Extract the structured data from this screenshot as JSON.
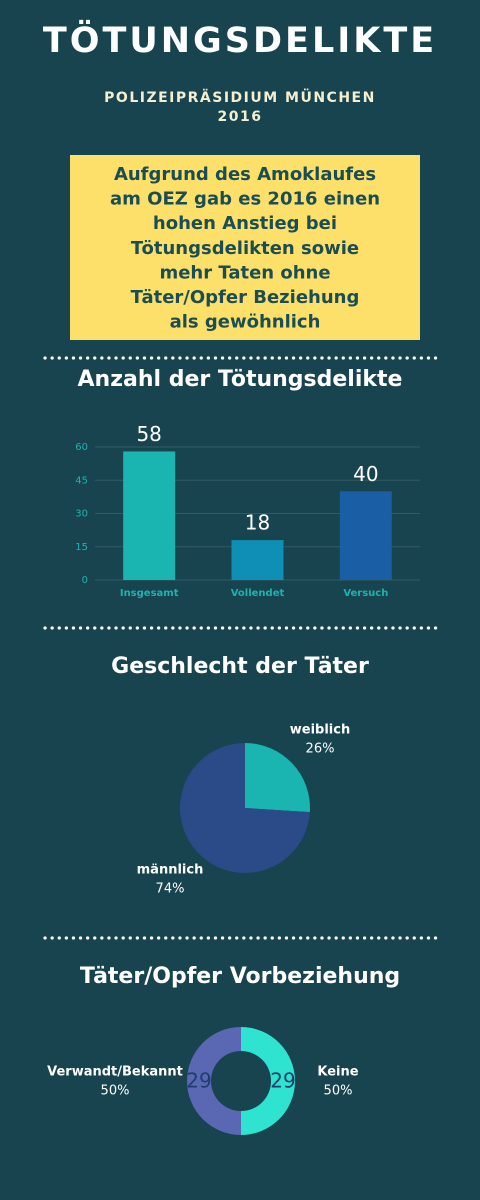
{
  "header": {
    "title": "TÖTUNGSDELIKTE",
    "subtitle": [
      "POLIZEIPRÄSIDIUM MÜNCHEN",
      "2016"
    ]
  },
  "note": [
    "Aufgrund des Amoklaufes",
    "am OEZ gab es 2016 einen",
    "hohen Anstieg bei",
    "Tötungsdelikten sowie",
    "mehr Taten ohne",
    "Täter/Opfer Beziehung",
    "als gewöhnlich"
  ],
  "chart_data": [
    {
      "type": "bar",
      "title": "Anzahl der Tötungsdelikte",
      "categories": [
        "Insgesamt",
        "Vollendet",
        "Versuch"
      ],
      "values": [
        58,
        18,
        40
      ],
      "colors": [
        "#1ab5b0",
        "#0f8fb5",
        "#1a5fa5"
      ],
      "ylim": [
        0,
        60
      ],
      "yticks": [
        0,
        15,
        30,
        45,
        60
      ],
      "grid": true
    },
    {
      "type": "pie",
      "title": "Geschlecht der Täter",
      "categories": [
        "weiblich",
        "männlich"
      ],
      "values": [
        26,
        74
      ],
      "value_labels": [
        "26%",
        "74%"
      ],
      "colors": [
        "#1ab5b0",
        "#2b4a88"
      ]
    },
    {
      "type": "donut",
      "title": "Täter/Opfer Vorbeziehung",
      "categories": [
        "Keine",
        "Verwandt/Bekannt"
      ],
      "values": [
        50,
        50
      ],
      "value_labels": [
        "50%",
        "50%"
      ],
      "counts": [
        29,
        29
      ],
      "colors": [
        "#2ee3cf",
        "#5a68b4"
      ]
    }
  ]
}
